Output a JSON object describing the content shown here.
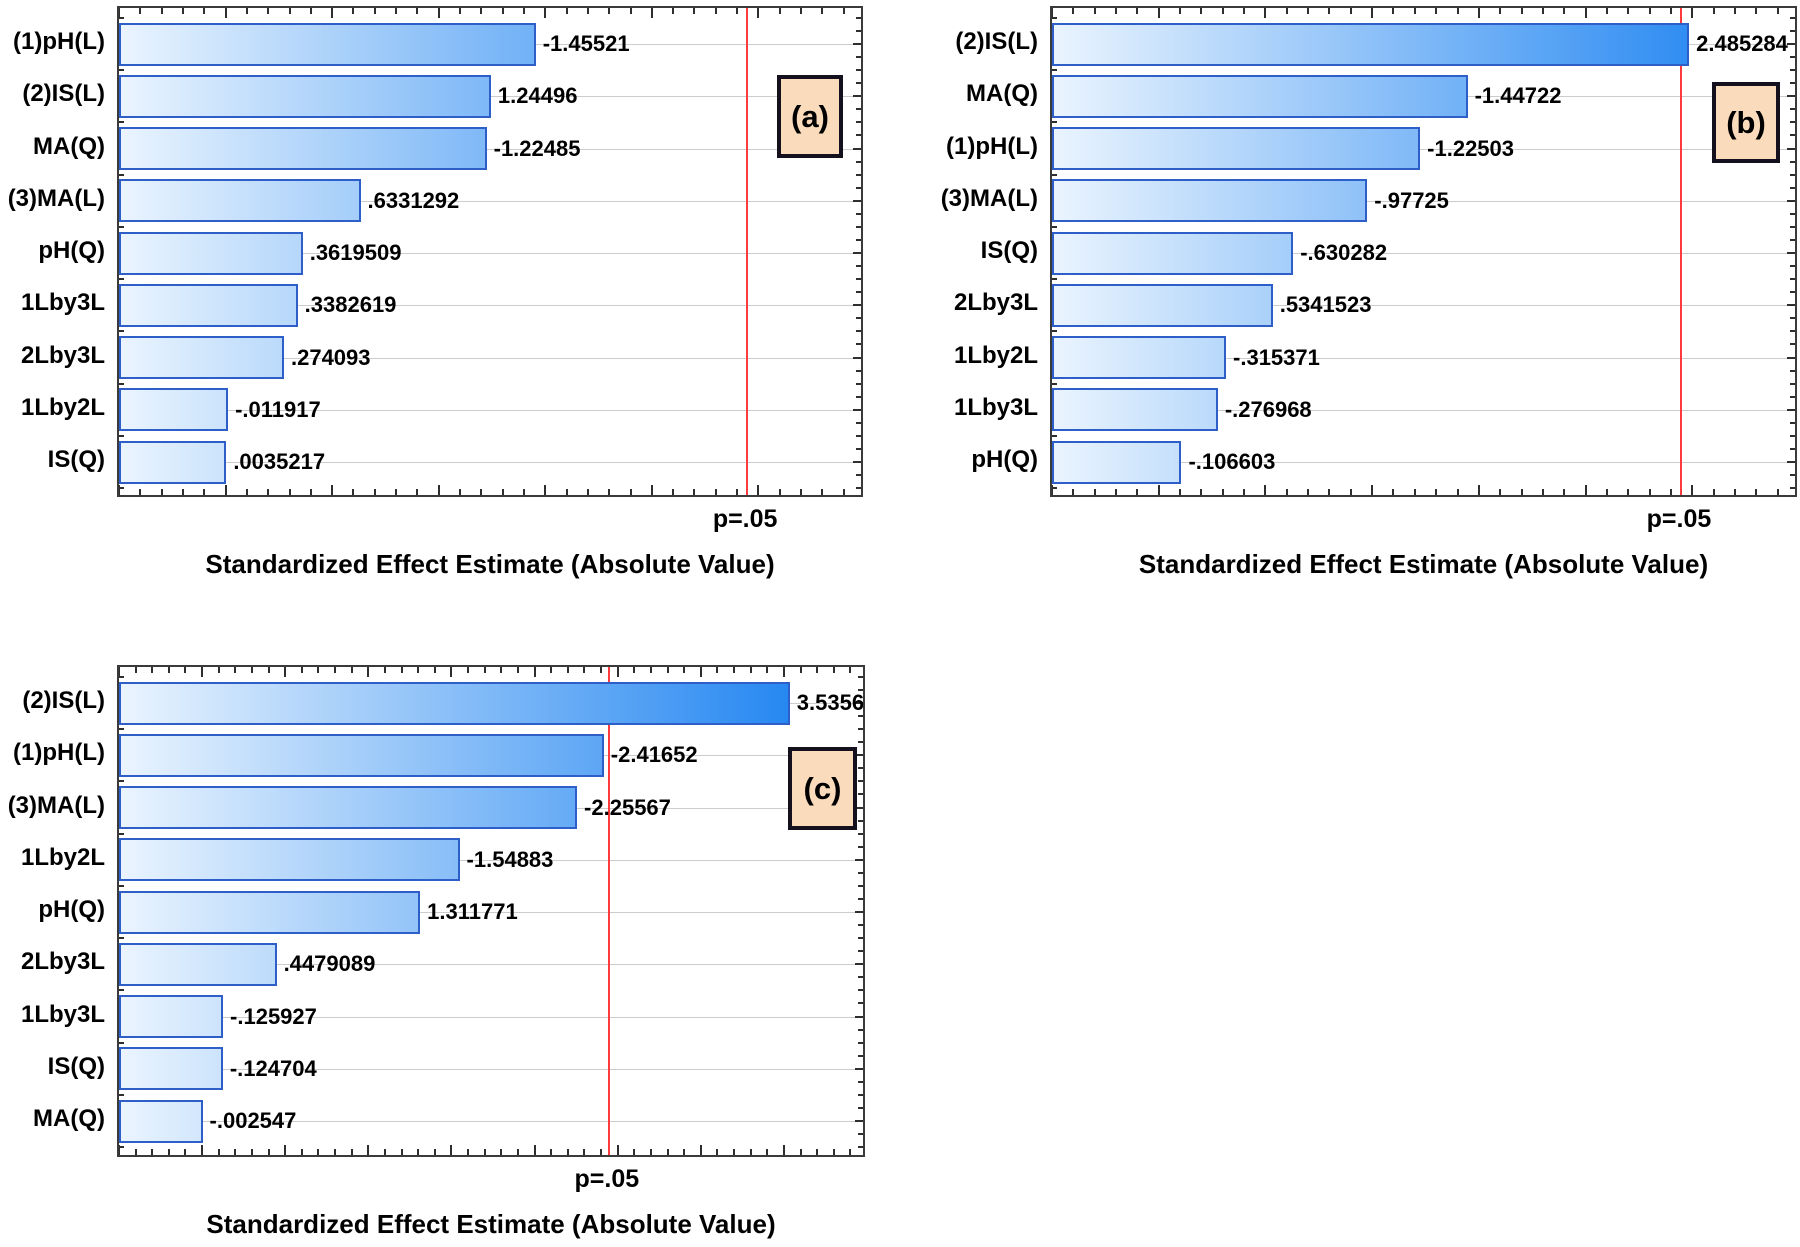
{
  "figure": {
    "background": "#ffffff",
    "axis_title": "Standardized Effect Estimate (Absolute Value)",
    "significance_label": "p=.05",
    "significance_value": 2.447
  },
  "colors": {
    "bar_fill_start": "#eaf4fe",
    "bar_fill_end": "#0f7bf0",
    "bar_border": "#2e5fc8",
    "significance_line": "#ff3b3b",
    "gridline": "#cccccc",
    "axis_frame": "#3a3a3a",
    "panel_box_fill": "#fadcbd",
    "panel_box_border": "#15101d",
    "text": "#000000"
  },
  "chart_data": [
    {
      "type": "bar",
      "orientation": "horizontal",
      "panel_label": "(a)",
      "xlabel": "Standardized Effect Estimate (Absolute Value)",
      "grid": "horizontal rows",
      "legend": "none",
      "xlim": [
        -0.5,
        3.0
      ],
      "reference_line": {
        "label": "p=.05",
        "value": 2.447
      },
      "categories": [
        "(1)pH(L)",
        "(2)IS(L)",
        "MA(Q)",
        "(3)MA(L)",
        "pH(Q)",
        "1Lby3L",
        "2Lby3L",
        "1Lby2L",
        "IS(Q)"
      ],
      "value_labels": [
        "-1.45521",
        "1.24496",
        "-1.22485",
        ".6331292",
        ".3619509",
        ".3382619",
        ".274093",
        "-.011917",
        ".0035217"
      ],
      "values": [
        1.45521,
        1.24496,
        1.22485,
        0.6331292,
        0.3619509,
        0.3382619,
        0.274093,
        0.011917,
        0.0035217
      ]
    },
    {
      "type": "bar",
      "orientation": "horizontal",
      "panel_label": "(b)",
      "xlabel": "Standardized Effect Estimate (Absolute Value)",
      "grid": "horizontal rows",
      "legend": "none",
      "xlim": [
        -0.5,
        3.0
      ],
      "reference_line": {
        "label": "p=.05",
        "value": 2.447
      },
      "categories": [
        "(2)IS(L)",
        "MA(Q)",
        "(1)pH(L)",
        "(3)MA(L)",
        "IS(Q)",
        "2Lby3L",
        "1Lby2L",
        "1Lby3L",
        "pH(Q)"
      ],
      "value_labels": [
        "2.485284",
        "-1.44722",
        "-1.22503",
        "-.97725",
        "-.630282",
        ".5341523",
        "-.315371",
        "-.276968",
        "-.106603"
      ],
      "values": [
        2.485284,
        1.44722,
        1.22503,
        0.97725,
        0.630282,
        0.5341523,
        0.315371,
        0.276968,
        0.106603
      ]
    },
    {
      "type": "bar",
      "orientation": "horizontal",
      "panel_label": "(c)",
      "xlabel": "Standardized Effect Estimate (Absolute Value)",
      "grid": "horizontal rows",
      "legend": "none",
      "xlim": [
        -0.5,
        4.0
      ],
      "reference_line": {
        "label": "p=.05",
        "value": 2.447
      },
      "categories": [
        "(2)IS(L)",
        "(1)pH(L)",
        "(3)MA(L)",
        "1Lby2L",
        "pH(Q)",
        "2Lby3L",
        "1Lby3L",
        "IS(Q)",
        "MA(Q)"
      ],
      "value_labels": [
        "3.5356",
        "-2.41652",
        "-2.25567",
        "-1.54883",
        "1.311771",
        ".4479089",
        "-.125927",
        "-.124704",
        "-.002547"
      ],
      "values": [
        3.5356,
        2.41652,
        2.25567,
        1.54883,
        1.311771,
        0.4479089,
        0.125927,
        0.124704,
        0.002547
      ]
    }
  ]
}
